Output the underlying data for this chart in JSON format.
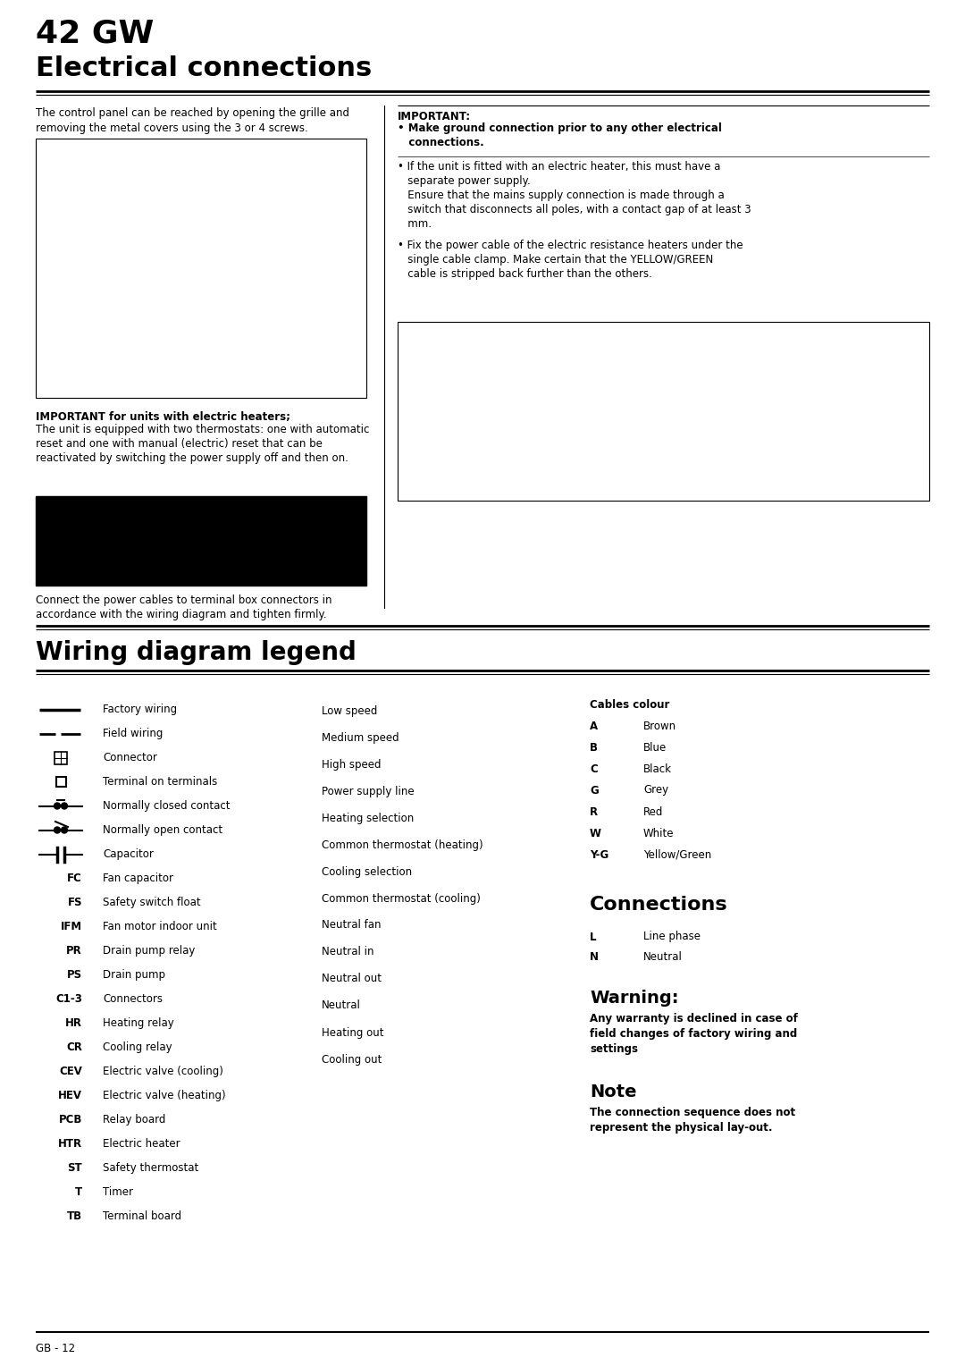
{
  "title1": "42 GW",
  "title2": "Electrical connections",
  "section2_title": "Wiring diagram legend",
  "body_text_left": "The control panel can be reached by opening the grille and\nremoving the metal covers using the 3 or 4 screws.",
  "important_bold": "IMPORTANT:",
  "important_bullet1_bold": "• Make ground connection prior to any other electrical\n   connections.",
  "important_bullet2": "• If the unit is fitted with an electric heater, this must have a\n   separate power supply.\n   Ensure that the mains supply connection is made through a\n   switch that disconnects all poles, with a contact gap of at least 3\n   mm.",
  "important_bullet3": "• Fix the power cable of the electric resistance heaters under the\n   single cable clamp. Make certain that the YELLOW/GREEN\n   cable is stripped back further than the others.",
  "important_for_units_bold": "IMPORTANT for units with electric heaters;",
  "important_for_units_text": "The unit is equipped with two thermostats: one with automatic\nreset and one with manual (electric) reset that can be\nreactivated by switching the power supply off and then on.",
  "connect_text": "Connect the power cables to terminal box connectors in\naccordance with the wiring diagram and tighten firmly.",
  "legend_col1": [
    [
      "line_solid",
      "Factory wiring"
    ],
    [
      "line_dash",
      "Field wiring"
    ],
    [
      "connector",
      "Connector"
    ],
    [
      "terminal",
      "Terminal on terminals"
    ],
    [
      "nc_contact",
      "Normally closed contact"
    ],
    [
      "no_contact",
      "Normally open contact"
    ],
    [
      "capacitor",
      "Capacitor"
    ],
    [
      "FC",
      "Fan capacitor"
    ],
    [
      "FS",
      "Safety switch float"
    ],
    [
      "IFM",
      "Fan motor indoor unit"
    ],
    [
      "PR",
      "Drain pump relay"
    ],
    [
      "PS",
      "Drain pump"
    ],
    [
      "C1-3",
      "Connectors"
    ],
    [
      "HR",
      "Heating relay"
    ],
    [
      "CR",
      "Cooling relay"
    ],
    [
      "CEV",
      "Electric valve (cooling)"
    ],
    [
      "HEV",
      "Electric valve (heating)"
    ],
    [
      "PCB",
      "Relay board"
    ],
    [
      "HTR",
      "Electric heater"
    ],
    [
      "ST",
      "Safety thermostat"
    ],
    [
      "T",
      "Timer"
    ],
    [
      "TB",
      "Terminal board"
    ]
  ],
  "legend_col2": [
    "Low speed",
    "Medium speed",
    "High speed",
    "Power supply line",
    "Heating selection",
    "Common thermostat (heating)",
    "Cooling selection",
    "Common thermostat (cooling)",
    "Neutral fan",
    "Neutral in",
    "Neutral out",
    "Neutral",
    "Heating out",
    "Cooling out"
  ],
  "cables_colour_title": "Cables colour",
  "cables_colour": [
    [
      "A",
      "Brown"
    ],
    [
      "B",
      "Blue"
    ],
    [
      "C",
      "Black"
    ],
    [
      "G",
      "Grey"
    ],
    [
      "R",
      "Red"
    ],
    [
      "W",
      "White"
    ],
    [
      "Y-G",
      "Yellow/Green"
    ]
  ],
  "connections_title": "Connections",
  "connections": [
    [
      "L",
      "Line phase"
    ],
    [
      "N",
      "Neutral"
    ]
  ],
  "warning_title": "Warning:",
  "warning_text": "Any warranty is declined in case of\nfield changes of factory wiring and\nsettings",
  "note_title": "Note",
  "note_text": "The connection sequence does not\nrepresent the physical lay-out.",
  "footer": "GB - 12",
  "bg_color": "#ffffff"
}
